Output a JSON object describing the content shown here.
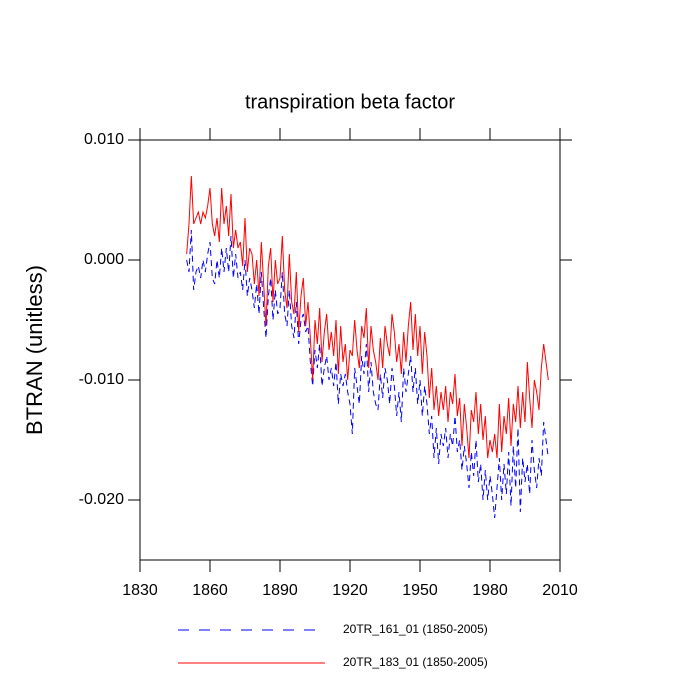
{
  "chart_data": {
    "type": "line",
    "title": "transpiration beta factor",
    "y_label": "BTRAN  (unitless)",
    "x": [
      1850,
      1851,
      1852,
      1853,
      1854,
      1855,
      1856,
      1857,
      1858,
      1859,
      1860,
      1861,
      1862,
      1863,
      1864,
      1865,
      1866,
      1867,
      1868,
      1869,
      1870,
      1871,
      1872,
      1873,
      1874,
      1875,
      1876,
      1877,
      1878,
      1879,
      1880,
      1881,
      1882,
      1883,
      1884,
      1885,
      1886,
      1887,
      1888,
      1889,
      1890,
      1891,
      1892,
      1893,
      1894,
      1895,
      1896,
      1897,
      1898,
      1899,
      1900,
      1901,
      1902,
      1903,
      1904,
      1905,
      1906,
      1907,
      1908,
      1909,
      1910,
      1911,
      1912,
      1913,
      1914,
      1915,
      1916,
      1917,
      1918,
      1919,
      1920,
      1921,
      1922,
      1923,
      1924,
      1925,
      1926,
      1927,
      1928,
      1929,
      1930,
      1931,
      1932,
      1933,
      1934,
      1935,
      1936,
      1937,
      1938,
      1939,
      1940,
      1941,
      1942,
      1943,
      1944,
      1945,
      1946,
      1947,
      1948,
      1949,
      1950,
      1951,
      1952,
      1953,
      1954,
      1955,
      1956,
      1957,
      1958,
      1959,
      1960,
      1961,
      1962,
      1963,
      1964,
      1965,
      1966,
      1967,
      1968,
      1969,
      1970,
      1971,
      1972,
      1973,
      1974,
      1975,
      1976,
      1977,
      1978,
      1979,
      1980,
      1981,
      1982,
      1983,
      1984,
      1985,
      1986,
      1987,
      1988,
      1989,
      1990,
      1991,
      1992,
      1993,
      1994,
      1995,
      1996,
      1997,
      1998,
      1999,
      2000,
      2001,
      2002,
      2003,
      2004,
      2005
    ],
    "series": [
      {
        "name": "20TR_161_01 (1850-2005)",
        "color": "#0000ff",
        "dashed": true,
        "values": [
          0.0,
          -0.001,
          0.0025,
          -0.0025,
          -0.001,
          -0.0005,
          -0.0015,
          0.0,
          -0.001,
          0.0005,
          0.0015,
          -0.0015,
          -0.002,
          0.0,
          -0.0015,
          0.001,
          -0.001,
          0.001,
          -0.001,
          0.002,
          -0.0015,
          0.0005,
          -0.0015,
          -0.001,
          -0.0025,
          0.0,
          -0.003,
          -0.0015,
          -0.0025,
          -0.004,
          -0.002,
          -0.0045,
          -0.001,
          -0.004,
          -0.0065,
          -0.003,
          -0.0015,
          -0.005,
          -0.0025,
          -0.0045,
          -0.004,
          -0.001,
          -0.0045,
          -0.0055,
          -0.0025,
          -0.0055,
          -0.0065,
          -0.0035,
          -0.007,
          -0.005,
          -0.0045,
          -0.006,
          -0.0055,
          -0.0085,
          -0.0105,
          -0.0075,
          -0.009,
          -0.007,
          -0.0105,
          -0.009,
          -0.008,
          -0.01,
          -0.009,
          -0.0105,
          -0.0085,
          -0.012,
          -0.0095,
          -0.0105,
          -0.0095,
          -0.011,
          -0.012,
          -0.0145,
          -0.009,
          -0.0105,
          -0.012,
          -0.008,
          -0.0095,
          -0.007,
          -0.011,
          -0.0085,
          -0.011,
          -0.012,
          -0.0125,
          -0.0095,
          -0.0115,
          -0.009,
          -0.01,
          -0.012,
          -0.009,
          -0.0105,
          -0.013,
          -0.011,
          -0.0135,
          -0.009,
          -0.011,
          -0.0095,
          -0.008,
          -0.011,
          -0.009,
          -0.012,
          -0.01,
          -0.013,
          -0.0105,
          -0.012,
          -0.0145,
          -0.013,
          -0.0165,
          -0.014,
          -0.017,
          -0.0145,
          -0.0155,
          -0.014,
          -0.0165,
          -0.0145,
          -0.0155,
          -0.013,
          -0.016,
          -0.015,
          -0.0175,
          -0.0155,
          -0.017,
          -0.019,
          -0.016,
          -0.018,
          -0.015,
          -0.0185,
          -0.017,
          -0.02,
          -0.0175,
          -0.02,
          -0.018,
          -0.0195,
          -0.0215,
          -0.019,
          -0.0165,
          -0.02,
          -0.017,
          -0.0195,
          -0.016,
          -0.0205,
          -0.0155,
          -0.019,
          -0.014,
          -0.021,
          -0.0165,
          -0.0185,
          -0.017,
          -0.0195,
          -0.015,
          -0.0175,
          -0.019,
          -0.0165,
          -0.018,
          -0.0135,
          -0.015,
          -0.0165
        ]
      },
      {
        "name": "20TR_183_01 (1850-2005)",
        "color": "#ff0000",
        "dashed": false,
        "values": [
          0.0005,
          0.003,
          0.007,
          0.003,
          0.0035,
          0.004,
          0.003,
          0.004,
          0.0035,
          0.0045,
          0.006,
          0.003,
          0.002,
          0.0035,
          0.0015,
          0.006,
          0.003,
          0.0045,
          0.002,
          0.0055,
          0.001,
          0.0025,
          0.001,
          0.0015,
          -0.0005,
          0.0035,
          -0.001,
          0.001,
          0.0005,
          -0.002,
          0.0,
          -0.003,
          0.0015,
          -0.002,
          -0.0055,
          -0.0005,
          0.001,
          -0.0035,
          0.0,
          -0.002,
          -0.0015,
          0.002,
          -0.0025,
          -0.004,
          0.0005,
          -0.0035,
          -0.0045,
          -0.001,
          -0.006,
          -0.003,
          -0.0015,
          -0.0055,
          -0.0035,
          -0.0065,
          -0.01,
          -0.005,
          -0.007,
          -0.004,
          -0.0085,
          -0.006,
          -0.0045,
          -0.0075,
          -0.006,
          -0.008,
          -0.005,
          -0.0095,
          -0.0055,
          -0.0085,
          -0.007,
          -0.01,
          -0.0075,
          -0.008,
          -0.005,
          -0.0075,
          -0.009,
          -0.0055,
          -0.0065,
          -0.004,
          -0.009,
          -0.0055,
          -0.0075,
          -0.0085,
          -0.01,
          -0.0065,
          -0.009,
          -0.0055,
          -0.007,
          -0.008,
          -0.0045,
          -0.006,
          -0.0085,
          -0.007,
          -0.0095,
          -0.006,
          -0.0085,
          -0.0055,
          -0.0035,
          -0.0075,
          -0.0045,
          -0.008,
          -0.0055,
          -0.0095,
          -0.006,
          -0.008,
          -0.0115,
          -0.009,
          -0.0125,
          -0.0105,
          -0.013,
          -0.011,
          -0.0125,
          -0.0105,
          -0.0135,
          -0.011,
          -0.012,
          -0.0095,
          -0.013,
          -0.0115,
          -0.0155,
          -0.012,
          -0.014,
          -0.0165,
          -0.0125,
          -0.0135,
          -0.011,
          -0.0145,
          -0.012,
          -0.015,
          -0.013,
          -0.0165,
          -0.015,
          -0.016,
          -0.0145,
          -0.0165,
          -0.012,
          -0.016,
          -0.013,
          -0.0145,
          -0.0115,
          -0.0155,
          -0.012,
          -0.0135,
          -0.0105,
          -0.014,
          -0.011,
          -0.0135,
          -0.0085,
          -0.0115,
          -0.014,
          -0.01,
          -0.011,
          -0.0125,
          -0.009,
          -0.007,
          -0.0085,
          -0.01
        ]
      }
    ],
    "xlim": [
      1830,
      2010
    ],
    "xticks": [
      1830,
      1860,
      1890,
      1920,
      1950,
      1980,
      2010
    ],
    "ylim": [
      -0.025,
      0.01
    ],
    "yticks": [
      {
        "value": -0.02,
        "label": "-0.020"
      },
      {
        "value": -0.01,
        "label": "-0.010"
      },
      {
        "value": 0,
        "label": "0.000"
      },
      {
        "value": 0.01,
        "label": "0.010"
      }
    ],
    "legend": "bottom"
  }
}
